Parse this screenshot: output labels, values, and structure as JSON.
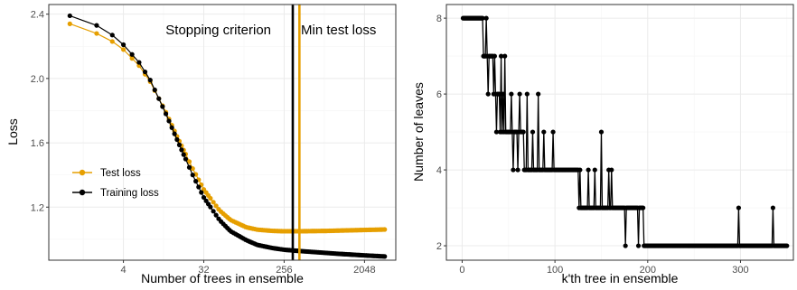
{
  "colors": {
    "test": "#E69F00",
    "train": "#000000",
    "grid_major": "#ebebeb",
    "grid_minor": "#f5f5f5",
    "panel_border": "#333333",
    "tick_text": "#4d4d4d"
  },
  "chart_data": [
    {
      "type": "line",
      "xscale": "log2",
      "xlabel": "Number of trees in ensemble",
      "ylabel": "Loss",
      "xlim": [
        0.58,
        4600
      ],
      "ylim": [
        0.87,
        2.46
      ],
      "xticks": [
        4,
        32,
        256,
        2048
      ],
      "xtick_labels": [
        "4",
        "32",
        "256",
        "2048"
      ],
      "yticks": [
        1.2,
        1.6,
        2.0,
        2.4
      ],
      "ytick_labels": [
        "1.2",
        "1.6",
        "2.0",
        "2.4"
      ],
      "grid": true,
      "legend_position": "bottom-left",
      "annotations": [
        {
          "text": "Stopping criterion",
          "x": 320
        },
        {
          "text": "Min test loss",
          "x": 380
        }
      ],
      "series": [
        {
          "name": "Test loss",
          "color": "#E69F00",
          "x": [
            1,
            1.5,
            2,
            3,
            4,
            6,
            8,
            12,
            16,
            24,
            32,
            48,
            64,
            96,
            128,
            192,
            256,
            384,
            512,
            768,
            1024,
            2048,
            3500
          ],
          "y": [
            2.34,
            2.31,
            2.28,
            2.23,
            2.18,
            2.08,
            1.98,
            1.79,
            1.64,
            1.44,
            1.31,
            1.18,
            1.12,
            1.075,
            1.06,
            1.052,
            1.05,
            1.05,
            1.051,
            1.052,
            1.054,
            1.058,
            1.061
          ]
        },
        {
          "name": "Training loss",
          "color": "#000000",
          "x": [
            1,
            1.5,
            2,
            3,
            4,
            6,
            8,
            12,
            16,
            24,
            32,
            48,
            64,
            96,
            128,
            192,
            256,
            384,
            512,
            768,
            1024,
            2048,
            3500
          ],
          "y": [
            2.39,
            2.36,
            2.33,
            2.27,
            2.21,
            2.1,
            1.99,
            1.78,
            1.62,
            1.4,
            1.26,
            1.12,
            1.05,
            0.995,
            0.965,
            0.945,
            0.935,
            0.927,
            0.922,
            0.915,
            0.91,
            0.9,
            0.893
          ]
        }
      ],
      "vlines": [
        {
          "x": 320,
          "color": "#000000",
          "label": "Stopping criterion"
        },
        {
          "x": 380,
          "color": "#E69F00",
          "label": "Min test loss"
        }
      ]
    },
    {
      "type": "line",
      "xlabel": "k'th tree in ensemble",
      "ylabel": "Number of leaves",
      "xlim": [
        -17,
        357
      ],
      "ylim": [
        1.62,
        8.36
      ],
      "xticks": [
        0,
        100,
        200,
        300
      ],
      "xtick_labels": [
        "0",
        "100",
        "200",
        "300"
      ],
      "yticks": [
        2,
        4,
        6,
        8
      ],
      "ytick_labels": [
        "2",
        "4",
        "6",
        "8"
      ],
      "grid": true,
      "series": [
        {
          "name": "",
          "color": "#000000",
          "segments": [
            {
              "from": 1,
              "to": 22,
              "value": 8
            },
            {
              "from": 23,
              "to": 33,
              "value": 7
            },
            {
              "from": 34,
              "to": 40,
              "value": 6
            },
            {
              "from": 41,
              "to": 55,
              "value": 5
            },
            {
              "from": 56,
              "to": 65,
              "value": 5
            },
            {
              "from": 66,
              "to": 95,
              "value": 4
            },
            {
              "from": 96,
              "to": 125,
              "value": 4
            },
            {
              "from": 126,
              "to": 195,
              "value": 3
            },
            {
              "from": 196,
              "to": 350,
              "value": 2
            }
          ],
          "spikes": [
            {
              "x": 26,
              "value": 8
            },
            {
              "x": 28,
              "value": 6
            },
            {
              "x": 30,
              "value": 7
            },
            {
              "x": 35,
              "value": 7
            },
            {
              "x": 37,
              "value": 5
            },
            {
              "x": 42,
              "value": 7
            },
            {
              "x": 44,
              "value": 6
            },
            {
              "x": 46,
              "value": 7
            },
            {
              "x": 48,
              "value": 5
            },
            {
              "x": 53,
              "value": 6
            },
            {
              "x": 55,
              "value": 4
            },
            {
              "x": 58,
              "value": 5
            },
            {
              "x": 60,
              "value": 4
            },
            {
              "x": 62,
              "value": 6
            },
            {
              "x": 66,
              "value": 5
            },
            {
              "x": 70,
              "value": 6
            },
            {
              "x": 72,
              "value": 4
            },
            {
              "x": 76,
              "value": 5
            },
            {
              "x": 80,
              "value": 4
            },
            {
              "x": 82,
              "value": 6
            },
            {
              "x": 84,
              "value": 4
            },
            {
              "x": 88,
              "value": 5
            },
            {
              "x": 92,
              "value": 4
            },
            {
              "x": 98,
              "value": 5
            },
            {
              "x": 127,
              "value": 4
            },
            {
              "x": 131,
              "value": 3
            },
            {
              "x": 136,
              "value": 4
            },
            {
              "x": 140,
              "value": 3
            },
            {
              "x": 143,
              "value": 4
            },
            {
              "x": 150,
              "value": 5
            },
            {
              "x": 158,
              "value": 4
            },
            {
              "x": 161,
              "value": 4
            },
            {
              "x": 165,
              "value": 3
            },
            {
              "x": 176,
              "value": 2
            },
            {
              "x": 186,
              "value": 3
            },
            {
              "x": 190,
              "value": 2
            },
            {
              "x": 298,
              "value": 3
            },
            {
              "x": 335,
              "value": 3
            }
          ]
        }
      ]
    }
  ]
}
